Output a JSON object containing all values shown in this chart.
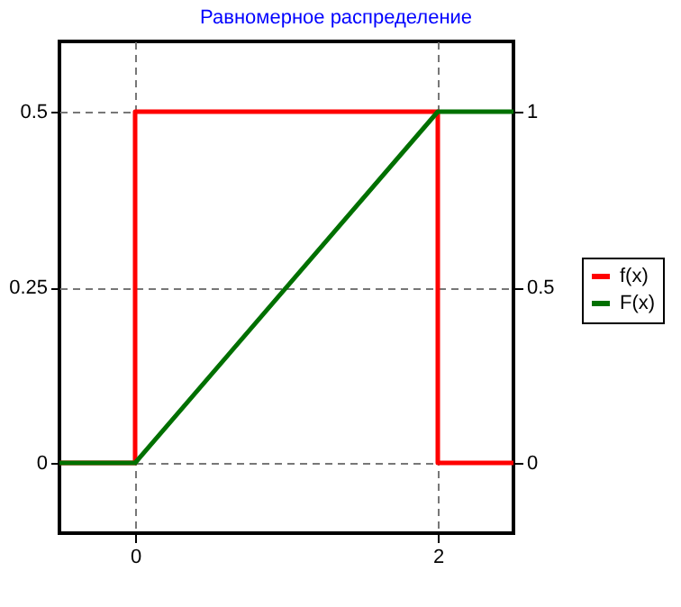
{
  "chart_data": {
    "type": "line",
    "title": "Равномерное распределение",
    "series": [
      {
        "name": "f(x)",
        "color": "#ff0000",
        "x": [
          -0.5,
          0,
          0,
          2,
          2,
          2.5
        ],
        "values": [
          0,
          0,
          0.5,
          0.5,
          0,
          0
        ]
      },
      {
        "name": "F(x)",
        "color": "#007000",
        "x": [
          -0.5,
          0,
          2,
          2.5
        ],
        "values": [
          0,
          0,
          1,
          1
        ],
        "axis": "y2"
      }
    ],
    "xlim": [
      -0.5,
      2.5
    ],
    "xticks": [
      0,
      2
    ],
    "ylim": [
      -0.1,
      0.6
    ],
    "yticks": [
      0,
      0.25,
      0.5
    ],
    "y2lim": [
      -0.2,
      1.2
    ],
    "y2ticks": [
      0,
      0.5,
      1
    ],
    "grid": true,
    "legend": "right"
  }
}
